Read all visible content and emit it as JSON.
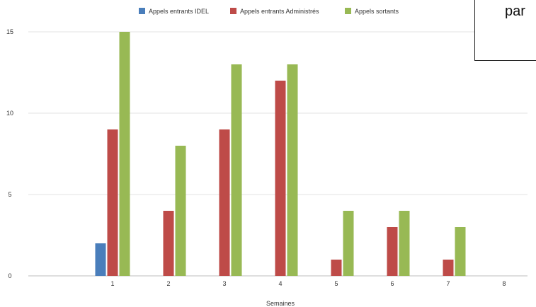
{
  "chart_data": {
    "type": "bar",
    "categories": [
      "1",
      "2",
      "3",
      "4",
      "5",
      "6",
      "7",
      "8"
    ],
    "series": [
      {
        "name": "Appels entrants IDEL",
        "color": "#4a7ebb",
        "values": [
          2,
          0,
          0,
          0,
          0,
          0,
          0,
          0
        ]
      },
      {
        "name": "Appels entrants Administrés",
        "color": "#be4b48",
        "values": [
          9,
          4,
          9,
          12,
          1,
          3,
          1,
          0
        ]
      },
      {
        "name": "Appels sortants",
        "color": "#98b954",
        "values": [
          15,
          8,
          13,
          13,
          4,
          4,
          3,
          0
        ]
      }
    ],
    "xlabel": "Semaines",
    "ylabel": "",
    "ylim": [
      0,
      15
    ],
    "yticks": [
      "0",
      "5",
      "10",
      "15"
    ],
    "grid": true,
    "legend_position": "top"
  },
  "overlay": {
    "text": "par"
  }
}
